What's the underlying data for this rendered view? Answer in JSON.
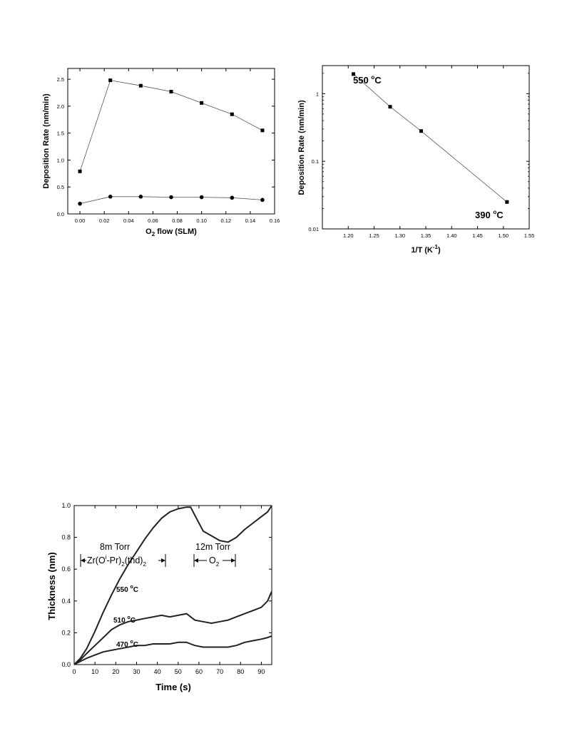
{
  "chart_data": [
    {
      "type": "line",
      "xlabel": "O",
      "xlabel_sub": "2",
      "xlabel_rest": " flow (SLM)",
      "ylabel": "Deposition Rate (nm/min)",
      "xlim": [
        -0.01,
        0.16
      ],
      "ylim": [
        0,
        2.7
      ],
      "x_ticks": [
        "0.00",
        "0.02",
        "0.04",
        "0.06",
        "0.08",
        "0.10",
        "0.12",
        "0.14",
        "0.16"
      ],
      "y_ticks": [
        "0.0",
        "0.5",
        "1.0",
        "1.5",
        "2.0",
        "2.5"
      ],
      "series": [
        {
          "marker": "square",
          "x": [
            0,
            0.025,
            0.05,
            0.075,
            0.1,
            0.125,
            0.15
          ],
          "y": [
            0.79,
            2.48,
            2.38,
            2.27,
            2.06,
            1.85,
            1.55
          ]
        },
        {
          "marker": "circle",
          "x": [
            0,
            0.025,
            0.05,
            0.075,
            0.1,
            0.125,
            0.15
          ],
          "y": [
            0.19,
            0.32,
            0.32,
            0.31,
            0.31,
            0.3,
            0.26
          ]
        }
      ]
    },
    {
      "type": "line",
      "yscale": "log",
      "xlabel": "1/T (K",
      "xlabel_sup": "-1",
      "xlabel_end": ")",
      "ylabel": "Deposition Rate (nm/min)",
      "xlim": [
        1.15,
        1.55
      ],
      "ylim": [
        0.01,
        2.6
      ],
      "x_ticks": [
        "1.20",
        "1.25",
        "1.30",
        "1.35",
        "1.40",
        "1.45",
        "1.50",
        "1.55"
      ],
      "y_ticks": [
        "0.01",
        "0.1",
        "1"
      ],
      "series": [
        {
          "marker": "square",
          "x": [
            1.21,
            1.281,
            1.341,
            1.507
          ],
          "y": [
            1.95,
            0.64,
            0.28,
            0.025
          ]
        }
      ],
      "annotations": [
        {
          "text": "550 ",
          "sup": "o",
          "after": "C",
          "at": "upper-left"
        },
        {
          "text": "390 ",
          "sup": "o",
          "after": "C",
          "at": "lower-right"
        }
      ]
    },
    {
      "type": "line",
      "xlabel": "Time (s)",
      "ylabel": "Thickness (nm)",
      "xlim": [
        0,
        95
      ],
      "ylim": [
        0,
        1.0
      ],
      "x_ticks": [
        "0",
        "10",
        "20",
        "30",
        "40",
        "50",
        "60",
        "70",
        "80",
        "90"
      ],
      "y_ticks": [
        "0.0",
        "0.2",
        "0.4",
        "0.6",
        "0.8",
        "1.0"
      ],
      "series": [
        {
          "label": "550 °C",
          "x": [
            0,
            3,
            6,
            10,
            14,
            18,
            22,
            26,
            30,
            34,
            38,
            42,
            46,
            50,
            54,
            56,
            58,
            62,
            66,
            70,
            74,
            78,
            82,
            86,
            90,
            93,
            95
          ],
          "y": [
            0,
            0.04,
            0.1,
            0.21,
            0.33,
            0.44,
            0.54,
            0.63,
            0.71,
            0.79,
            0.86,
            0.92,
            0.96,
            0.98,
            0.99,
            0.99,
            0.94,
            0.84,
            0.81,
            0.78,
            0.77,
            0.8,
            0.85,
            0.89,
            0.93,
            0.96,
            1.0
          ]
        },
        {
          "label": "510 °C",
          "x": [
            0,
            3,
            6,
            10,
            14,
            18,
            22,
            26,
            30,
            34,
            38,
            42,
            46,
            50,
            54,
            56,
            58,
            62,
            66,
            70,
            74,
            78,
            82,
            86,
            90,
            93,
            95
          ],
          "y": [
            0,
            0.03,
            0.07,
            0.12,
            0.17,
            0.22,
            0.25,
            0.27,
            0.28,
            0.29,
            0.3,
            0.31,
            0.3,
            0.31,
            0.32,
            0.3,
            0.28,
            0.27,
            0.26,
            0.27,
            0.28,
            0.3,
            0.32,
            0.34,
            0.36,
            0.4,
            0.46
          ]
        },
        {
          "label": "470 °C",
          "x": [
            0,
            3,
            6,
            10,
            14,
            18,
            22,
            26,
            30,
            34,
            38,
            42,
            46,
            50,
            54,
            56,
            58,
            62,
            66,
            70,
            74,
            78,
            82,
            86,
            90,
            93,
            95
          ],
          "y": [
            0,
            0.02,
            0.04,
            0.06,
            0.08,
            0.09,
            0.1,
            0.11,
            0.12,
            0.12,
            0.13,
            0.13,
            0.13,
            0.14,
            0.14,
            0.13,
            0.12,
            0.11,
            0.11,
            0.11,
            0.11,
            0.12,
            0.14,
            0.15,
            0.16,
            0.17,
            0.18
          ]
        }
      ],
      "annotations": {
        "pressure1": "8m Torr",
        "precursor": [
          "Zr(O",
          "i",
          "-Pr)",
          "2",
          "(thd)",
          "2"
        ],
        "pressure2": "12m Torr",
        "gas": [
          "O",
          "2"
        ],
        "temps": [
          {
            "text": "550 ",
            "sup": "o",
            "after": "C"
          },
          {
            "text": "510 ",
            "sup": "o",
            "after": "C"
          },
          {
            "text": "470 ",
            "sup": "o",
            "after": "C"
          }
        ]
      }
    }
  ]
}
